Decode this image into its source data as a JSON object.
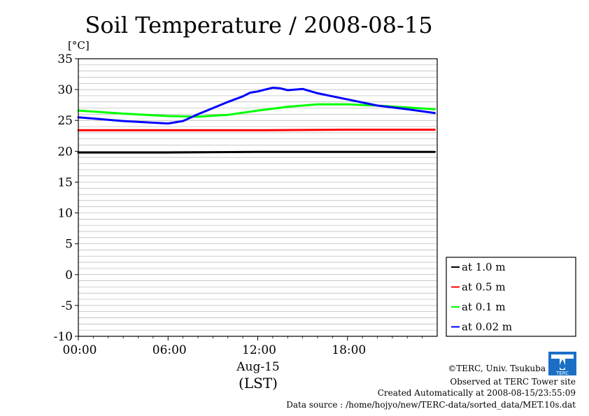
{
  "chart_data": {
    "type": "line",
    "title": "Soil Temperature / 2008-08-15",
    "ylabel": "[°C]",
    "ylim": [
      -10,
      35
    ],
    "yticks": [
      "35",
      "30",
      "25",
      "20",
      "15",
      "10",
      "5",
      "0",
      "-5",
      "-10"
    ],
    "xlim": [
      "2008-08-15 00:00",
      "2008-08-16 00:00"
    ],
    "xticks": [
      "00:00",
      "06:00",
      "12:00",
      "18:00"
    ],
    "xlabel_date": "Aug-15",
    "xlabel_unit": "(LST)",
    "grid": true,
    "legend_position": "right",
    "series": [
      {
        "name": "at 1.0 m",
        "color": "#000000",
        "x": [
          "00:00",
          "06:00",
          "12:00",
          "18:00",
          "23:50"
        ],
        "y": [
          19.8,
          19.8,
          19.9,
          19.9,
          19.9
        ]
      },
      {
        "name": "at 0.5 m",
        "color": "#ff0000",
        "x": [
          "00:00",
          "06:00",
          "12:00",
          "18:00",
          "23:50"
        ],
        "y": [
          23.4,
          23.4,
          23.4,
          23.5,
          23.5
        ]
      },
      {
        "name": "at 0.1 m",
        "color": "#00ff00",
        "x": [
          "00:00",
          "03:00",
          "06:00",
          "08:00",
          "10:00",
          "12:00",
          "14:00",
          "16:00",
          "18:00",
          "20:00",
          "22:00",
          "23:50"
        ],
        "y": [
          26.6,
          26.1,
          25.7,
          25.6,
          25.9,
          26.6,
          27.2,
          27.6,
          27.6,
          27.4,
          27.1,
          26.8
        ]
      },
      {
        "name": "at 0.02 m",
        "color": "#0000ff",
        "x": [
          "00:00",
          "03:00",
          "06:00",
          "07:00",
          "08:00",
          "09:00",
          "10:00",
          "11:00",
          "11:30",
          "12:00",
          "12:30",
          "13:00",
          "13:30",
          "14:00",
          "14:30",
          "15:00",
          "16:00",
          "17:00",
          "18:00",
          "20:00",
          "22:00",
          "23:50"
        ],
        "y": [
          25.5,
          24.9,
          24.5,
          24.9,
          26.0,
          27.0,
          28.0,
          28.9,
          29.5,
          29.7,
          30.0,
          30.3,
          30.2,
          29.9,
          30.0,
          30.1,
          29.4,
          28.9,
          28.4,
          27.4,
          26.8,
          26.2
        ]
      }
    ]
  },
  "credits": {
    "copyright": "©TERC, Univ. Tsukuba",
    "observed": "Observed at TERC Tower site",
    "created": "Created Automatically at 2008-08-15/23:55:09",
    "source": "Data source : /home/hojyo/new/TERC-data/sorted_data/MET.10s.dat"
  },
  "logo": {
    "text": "TERC",
    "icon": "terc-logo-icon"
  }
}
